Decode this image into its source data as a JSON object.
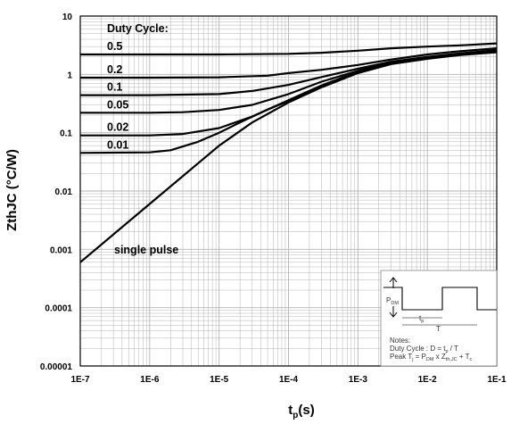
{
  "chart_data": {
    "type": "line",
    "xscale": "log",
    "yscale": "log",
    "xlim": [
      1e-07,
      0.1
    ],
    "ylim": [
      1e-05,
      10
    ],
    "xlabel_main": "t",
    "xlabel_sub": "p",
    "xlabel_unit": "(s)",
    "ylabel": "ZthJC (°C/W)",
    "x_ticks": [
      1e-07,
      1e-06,
      1e-05,
      0.0001,
      0.001,
      0.01,
      0.1
    ],
    "x_tick_labels": [
      "1E-7",
      "1E-6",
      "1E-5",
      "1E-4",
      "1E-3",
      "1E-2",
      "1E-1"
    ],
    "y_ticks": [
      1e-05,
      0.0001,
      0.001,
      0.01,
      0.1,
      1,
      10
    ],
    "y_tick_labels": [
      "0.00001",
      "0.0001",
      "0.001",
      "0.01",
      "0.1",
      "1",
      "10"
    ],
    "grid": true,
    "legend_title": "Duty Cycle:",
    "series": [
      {
        "name": "0.5",
        "x": [
          1e-07,
          1e-06,
          1e-05,
          0.0001,
          0.0003,
          0.001,
          0.003,
          0.01,
          0.03,
          0.1
        ],
        "y": [
          2.2,
          2.2,
          2.2,
          2.25,
          2.35,
          2.55,
          2.8,
          3.0,
          3.15,
          3.4
        ]
      },
      {
        "name": "0.2",
        "x": [
          1e-07,
          1e-06,
          1e-05,
          5e-05,
          0.0001,
          0.0003,
          0.001,
          0.003,
          0.01,
          0.03,
          0.1
        ],
        "y": [
          0.88,
          0.88,
          0.89,
          0.95,
          1.05,
          1.2,
          1.45,
          1.8,
          2.2,
          2.5,
          2.8
        ]
      },
      {
        "name": "0.1",
        "x": [
          1e-07,
          1e-06,
          1e-05,
          3e-05,
          0.0001,
          0.0003,
          0.001,
          0.003,
          0.01,
          0.03,
          0.1
        ],
        "y": [
          0.44,
          0.44,
          0.46,
          0.52,
          0.66,
          0.9,
          1.25,
          1.65,
          2.0,
          2.3,
          2.6
        ]
      },
      {
        "name": "0.05",
        "x": [
          1e-07,
          1e-06,
          3e-06,
          1e-05,
          3e-05,
          0.0001,
          0.0003,
          0.001,
          0.003,
          0.01,
          0.03,
          0.1
        ],
        "y": [
          0.22,
          0.22,
          0.225,
          0.245,
          0.3,
          0.46,
          0.75,
          1.15,
          1.6,
          1.95,
          2.25,
          2.5
        ]
      },
      {
        "name": "0.02",
        "x": [
          1e-07,
          1e-06,
          3e-06,
          1e-05,
          3e-05,
          0.0001,
          0.0003,
          0.001,
          0.003,
          0.01,
          0.03,
          0.1
        ],
        "y": [
          0.09,
          0.09,
          0.095,
          0.12,
          0.19,
          0.36,
          0.65,
          1.1,
          1.55,
          1.9,
          2.2,
          2.45
        ]
      },
      {
        "name": "0.01",
        "x": [
          1e-07,
          1e-06,
          2e-06,
          5e-06,
          1e-05,
          2e-05,
          5e-05,
          0.0001,
          0.0003,
          0.001,
          0.003,
          0.01,
          0.03,
          0.1
        ],
        "y": [
          0.045,
          0.046,
          0.05,
          0.07,
          0.1,
          0.15,
          0.25,
          0.35,
          0.62,
          1.08,
          1.55,
          1.88,
          2.18,
          2.45
        ]
      },
      {
        "name": "single pulse",
        "x": [
          1e-07,
          1e-06,
          1e-05,
          3e-05,
          0.0001,
          0.0003,
          0.001,
          0.003,
          0.01,
          0.03,
          0.1
        ],
        "y": [
          0.0006,
          0.006,
          0.06,
          0.15,
          0.33,
          0.6,
          1.05,
          1.5,
          1.85,
          2.15,
          2.4
        ]
      }
    ],
    "annotations": {
      "duty_cycle_title": "Duty Cycle:",
      "single_pulse_label": "single pulse"
    },
    "inset": {
      "pdm_main": "P",
      "pdm_sub": "DM",
      "tp_main": "t",
      "tp_sub": "p",
      "period": "T",
      "notes_title": "Notes:",
      "duty_prefix": "Duty Cycle : D = t",
      "duty_sub": "p",
      "duty_suffix": " / T",
      "peak_p1": "Peak T",
      "peak_s1": "j",
      "peak_p2": " = P",
      "peak_s2": "DM",
      "peak_p3": " x Z",
      "peak_s3": "th,JC",
      "peak_p4": " + T",
      "peak_s4": "c"
    },
    "colors": {
      "curve": "#000000",
      "grid": "#b3b3b3",
      "axis": "#000000"
    }
  }
}
